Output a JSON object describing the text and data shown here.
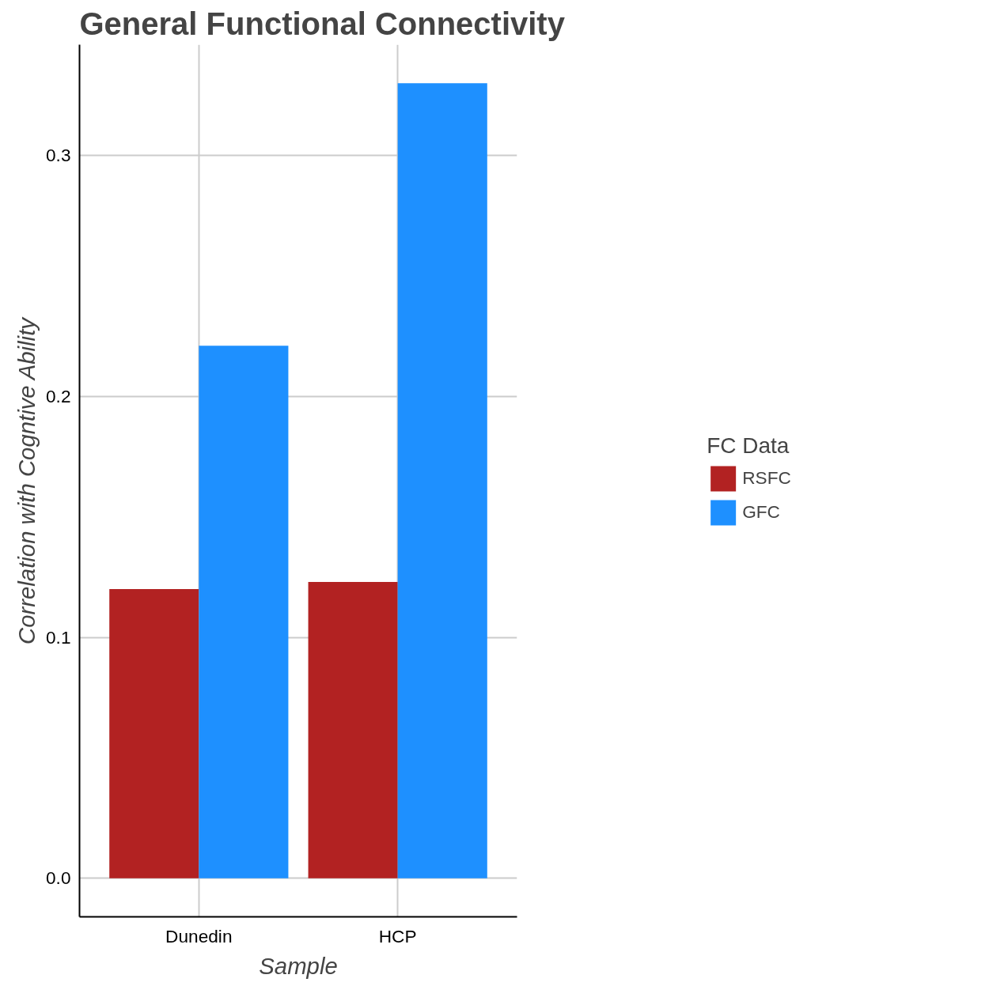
{
  "chart_data": {
    "type": "bar",
    "title": "General Functional Connectivity",
    "xlabel": "Sample",
    "ylabel": "Correlation with Cogntive Ability",
    "legend_title": "FC Data",
    "categories": [
      "Dunedin",
      "HCP"
    ],
    "series": [
      {
        "name": "RSFC",
        "color": "#b22222",
        "values": [
          0.12,
          0.123
        ]
      },
      {
        "name": "GFC",
        "color": "#1e90ff",
        "values": [
          0.221,
          0.33
        ]
      }
    ],
    "ylim": [
      -0.016,
      0.346
    ],
    "yticks": [
      {
        "value": 0,
        "label": "0.0"
      },
      0.1,
      0.2,
      0.3
    ],
    "grid": true,
    "legend": "right"
  }
}
